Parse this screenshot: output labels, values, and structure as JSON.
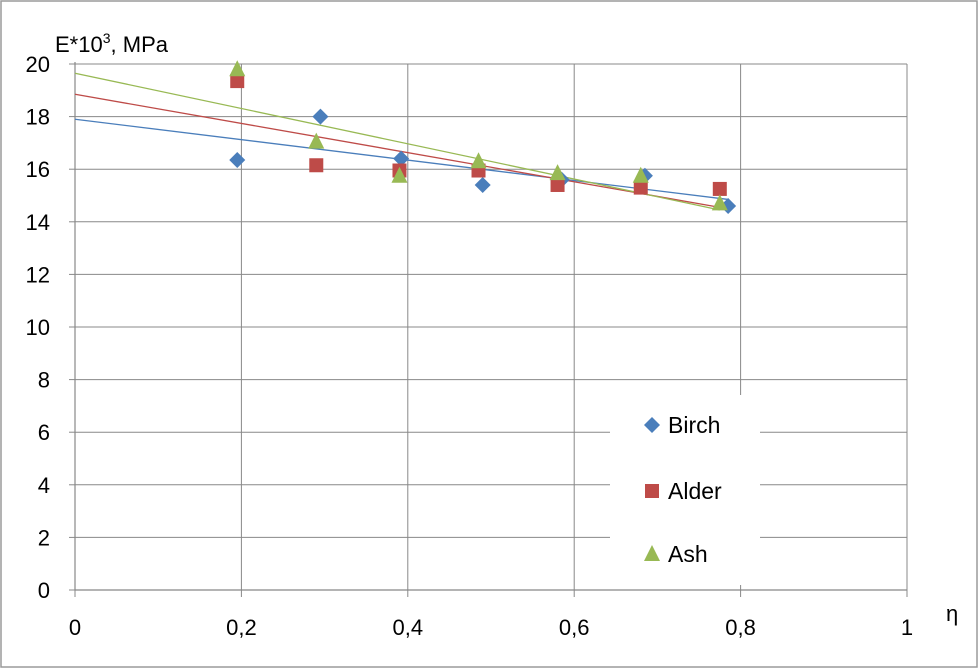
{
  "chart_data": {
    "type": "scatter",
    "ylabel_base": "E*10",
    "ylabel_exp": "3",
    "ylabel_unit": ", MPa",
    "xlabel": "η",
    "xlim": [
      0,
      1
    ],
    "ylim": [
      0,
      20
    ],
    "x_ticks": [
      "0",
      "0,2",
      "0,4",
      "0,6",
      "0,8",
      "1"
    ],
    "y_ticks": [
      "0",
      "2",
      "4",
      "6",
      "8",
      "10",
      "12",
      "14",
      "16",
      "18",
      "20"
    ],
    "grid": true,
    "legend_position": "lower-right",
    "series": [
      {
        "name": "Birch",
        "color": "#4a7ebb",
        "marker": "diamond",
        "points": [
          [
            0.195,
            16.35
          ],
          [
            0.295,
            18.0
          ],
          [
            0.392,
            16.4
          ],
          [
            0.49,
            15.4
          ],
          [
            0.585,
            15.6
          ],
          [
            0.685,
            15.75
          ],
          [
            0.785,
            14.6
          ]
        ],
        "trend": [
          [
            0,
            17.9
          ],
          [
            0.785,
            14.85
          ]
        ]
      },
      {
        "name": "Alder",
        "color": "#be4b48",
        "marker": "square",
        "points": [
          [
            0.195,
            19.35
          ],
          [
            0.29,
            16.15
          ],
          [
            0.39,
            15.95
          ],
          [
            0.485,
            15.95
          ],
          [
            0.58,
            15.4
          ],
          [
            0.68,
            15.3
          ],
          [
            0.775,
            15.25
          ]
        ],
        "trend": [
          [
            0,
            18.85
          ],
          [
            0.775,
            14.55
          ]
        ]
      },
      {
        "name": "Ash",
        "color": "#98b954",
        "marker": "triangle",
        "points": [
          [
            0.195,
            19.8
          ],
          [
            0.29,
            17.05
          ],
          [
            0.39,
            15.75
          ],
          [
            0.485,
            16.3
          ],
          [
            0.58,
            15.85
          ],
          [
            0.68,
            15.75
          ],
          [
            0.775,
            14.7
          ]
        ],
        "trend": [
          [
            0,
            19.65
          ],
          [
            0.775,
            14.45
          ]
        ]
      }
    ]
  }
}
